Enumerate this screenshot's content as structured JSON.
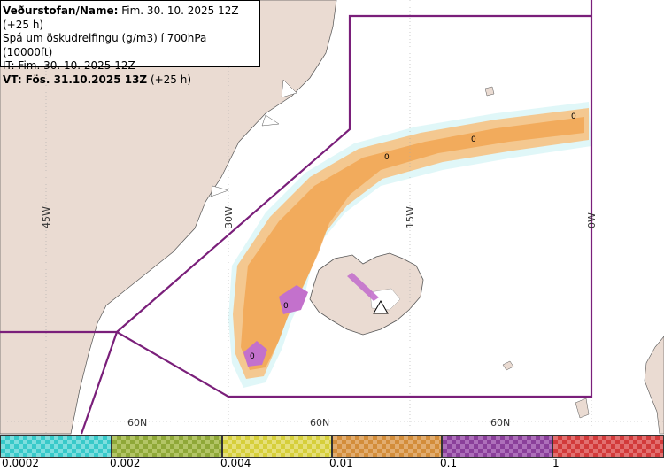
{
  "info": {
    "line1_label": "Veðurstofan/Name:",
    "line1_value": " Fim. 30. 10. 2025 12Z (+25 h)",
    "line2": "Spá um öskudreifingu (g/m3) í 700hPa (10000ft)",
    "line3": "IT: Fim. 30. 10. 2025 12Z",
    "line4_label": "VT: Fös. 31.10.2025 13Z",
    "line4_value": " (+25 h)"
  },
  "graticule": {
    "lon_labels": [
      "45W",
      "30W",
      "15W",
      "0W"
    ],
    "lat_labels": [
      "60N",
      "60N",
      "60N"
    ]
  },
  "plume_markers": [
    "0",
    "0",
    "0",
    "0",
    "0"
  ],
  "legend": {
    "ticks": [
      "0.0002",
      "0.002",
      "0.004",
      "0.01",
      "0.1",
      "1"
    ],
    "colors": [
      "#37c9c9",
      "#8fa838",
      "#d6cf3a",
      "#d38d3a",
      "#8a3f9a",
      "#d23a3a"
    ]
  },
  "colors": {
    "land": "#eadbd2",
    "sea": "#ffffff",
    "boundary": "#7a1f7a",
    "ash_low": "#f7c07e",
    "ash_mid": "#f2a24b",
    "ash_high": "#c371cc",
    "ash_trace": "#a6e6ea"
  }
}
